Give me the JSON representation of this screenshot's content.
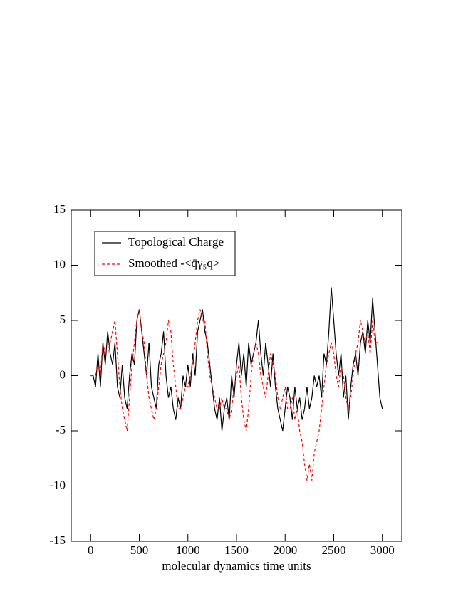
{
  "chart_data": {
    "type": "line",
    "xlabel": "molecular dynamics time units",
    "xlim": [
      -200,
      3200
    ],
    "ylim": [
      -15,
      15
    ],
    "xticks": [
      0,
      500,
      1000,
      1500,
      2000,
      2500,
      3000
    ],
    "yticks": [
      -15,
      -10,
      -5,
      0,
      5,
      10,
      15
    ],
    "legend": "upper left",
    "x": [
      0,
      25,
      50,
      75,
      100,
      125,
      150,
      175,
      200,
      225,
      250,
      275,
      300,
      325,
      350,
      375,
      400,
      425,
      450,
      475,
      500,
      525,
      550,
      575,
      600,
      625,
      650,
      675,
      700,
      725,
      750,
      775,
      800,
      825,
      850,
      875,
      900,
      925,
      950,
      975,
      1000,
      1025,
      1050,
      1075,
      1100,
      1125,
      1150,
      1175,
      1200,
      1225,
      1250,
      1275,
      1300,
      1325,
      1350,
      1375,
      1400,
      1425,
      1450,
      1475,
      1500,
      1525,
      1550,
      1575,
      1600,
      1625,
      1650,
      1675,
      1700,
      1725,
      1750,
      1775,
      1800,
      1825,
      1850,
      1875,
      1900,
      1925,
      1950,
      1975,
      2000,
      2025,
      2050,
      2075,
      2100,
      2125,
      2150,
      2175,
      2200,
      2225,
      2250,
      2275,
      2300,
      2325,
      2350,
      2375,
      2400,
      2425,
      2450,
      2475,
      2500,
      2525,
      2550,
      2575,
      2600,
      2625,
      2650,
      2675,
      2700,
      2725,
      2750,
      2775,
      2800,
      2825,
      2850,
      2875,
      2900,
      2925,
      2950,
      2975,
      3000
    ],
    "series": [
      {
        "name": "Topological Charge",
        "color": "#000000",
        "dash": "solid",
        "values": [
          0,
          0,
          -1,
          2,
          -1,
          3,
          1,
          4,
          2,
          1,
          3,
          -1,
          -2,
          1,
          -2,
          -3,
          0,
          2,
          1,
          5,
          6,
          4,
          2,
          0,
          3,
          -1,
          -2,
          -3,
          1,
          2,
          4,
          0,
          -2,
          -1,
          -3,
          -4,
          -2,
          -3,
          0,
          -1,
          1,
          -1,
          2,
          0,
          4,
          5,
          6,
          4,
          3,
          1,
          -1,
          -3,
          -4,
          -2,
          -5,
          -3,
          -2,
          -4,
          0,
          -2,
          1,
          3,
          0,
          2,
          -1,
          3,
          1,
          2,
          3,
          5,
          2,
          0,
          3,
          1,
          -1,
          2,
          -1,
          -3,
          -4,
          -5,
          -3,
          -1,
          -2,
          -4,
          -1,
          -3,
          -2,
          -4,
          -3,
          -1,
          -3,
          -2,
          0,
          -1,
          0,
          -2,
          2,
          1,
          4,
          8,
          5,
          2,
          0,
          2,
          -2,
          0,
          -4,
          -1,
          1,
          2,
          0,
          3,
          4,
          2,
          5,
          3,
          7,
          4,
          1,
          -2,
          -3
        ]
      },
      {
        "name": "Smoothed -<q̄γ₅q>",
        "color": "#ff0000",
        "dash": "dashed",
        "values": [
          0,
          0,
          0,
          1,
          0,
          3,
          2,
          2,
          3,
          4,
          5,
          2,
          -1,
          -3,
          -4,
          -5,
          -2,
          1,
          3,
          5,
          6,
          4,
          3,
          0,
          -2,
          -3,
          -4,
          -3,
          -1,
          1,
          2,
          3,
          5,
          4,
          1,
          -1,
          -3,
          -3,
          -2,
          -1,
          -1,
          0,
          1,
          3,
          5,
          6,
          5,
          5,
          2,
          0,
          -1,
          -2,
          -3,
          -3,
          -2,
          -3,
          -3,
          -4,
          -3,
          -1,
          0,
          1,
          -2,
          -4,
          -5,
          -3,
          0,
          2,
          3,
          2,
          0,
          -1,
          -2,
          0,
          2,
          1,
          0,
          -2,
          -3,
          -2,
          -1,
          -3,
          -3,
          -2,
          -4,
          -3,
          -5,
          -6,
          -8,
          -9.5,
          -8,
          -9.5,
          -7,
          -6,
          -5,
          -3,
          -1,
          1,
          2,
          3,
          2,
          0,
          -1,
          1,
          0,
          -2,
          -3,
          -2,
          0,
          2,
          3,
          5,
          4,
          3,
          4,
          2,
          5,
          3,
          3,
          null,
          null
        ]
      }
    ]
  }
}
